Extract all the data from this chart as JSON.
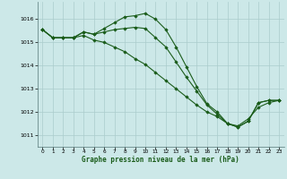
{
  "title": "Graphe pression niveau de la mer (hPa)",
  "background_color": "#cce8e8",
  "grid_color": "#aacccc",
  "line_color": "#1a5c1a",
  "marker_color": "#1a5c1a",
  "xlim": [
    -0.5,
    23.5
  ],
  "ylim": [
    1010.5,
    1016.75
  ],
  "yticks": [
    1011,
    1012,
    1013,
    1014,
    1015,
    1016
  ],
  "xticks": [
    0,
    1,
    2,
    3,
    4,
    5,
    6,
    7,
    8,
    9,
    10,
    11,
    12,
    13,
    14,
    15,
    16,
    17,
    18,
    19,
    20,
    21,
    22,
    23
  ],
  "series": [
    {
      "x": [
        0,
        1,
        2,
        3,
        4,
        5,
        6,
        7,
        8,
        9,
        10,
        11,
        12,
        13,
        14,
        15,
        16,
        17,
        18,
        19,
        20,
        21,
        22,
        23
      ],
      "y": [
        1015.55,
        1015.2,
        1015.2,
        1015.2,
        1015.45,
        1015.35,
        1015.6,
        1015.85,
        1016.1,
        1016.15,
        1016.25,
        1016.0,
        1015.55,
        1014.8,
        1013.95,
        1013.1,
        1012.35,
        1012.0,
        1011.5,
        1011.35,
        1011.6,
        1012.4,
        1012.5,
        1012.5
      ]
    },
    {
      "x": [
        0,
        1,
        2,
        3,
        4,
        5,
        6,
        7,
        8,
        9,
        10,
        11,
        12,
        13,
        14,
        15,
        16,
        17,
        18,
        19,
        20,
        21,
        22,
        23
      ],
      "y": [
        1015.55,
        1015.2,
        1015.2,
        1015.2,
        1015.3,
        1015.1,
        1015.0,
        1014.8,
        1014.6,
        1014.3,
        1014.05,
        1013.7,
        1013.35,
        1013.0,
        1012.65,
        1012.3,
        1012.0,
        1011.8,
        1011.5,
        1011.4,
        1011.7,
        1012.2,
        1012.4,
        1012.5
      ]
    },
    {
      "x": [
        0,
        1,
        2,
        3,
        4,
        5,
        6,
        7,
        8,
        9,
        10,
        11,
        12,
        13,
        14,
        15,
        16,
        17,
        18,
        19,
        20,
        21,
        22,
        23
      ],
      "y": [
        1015.55,
        1015.2,
        1015.2,
        1015.2,
        1015.45,
        1015.35,
        1015.45,
        1015.55,
        1015.6,
        1015.65,
        1015.6,
        1015.2,
        1014.8,
        1014.15,
        1013.5,
        1012.9,
        1012.3,
        1011.9,
        1011.5,
        1011.35,
        1011.6,
        1012.4,
        1012.5,
        1012.5
      ]
    }
  ]
}
